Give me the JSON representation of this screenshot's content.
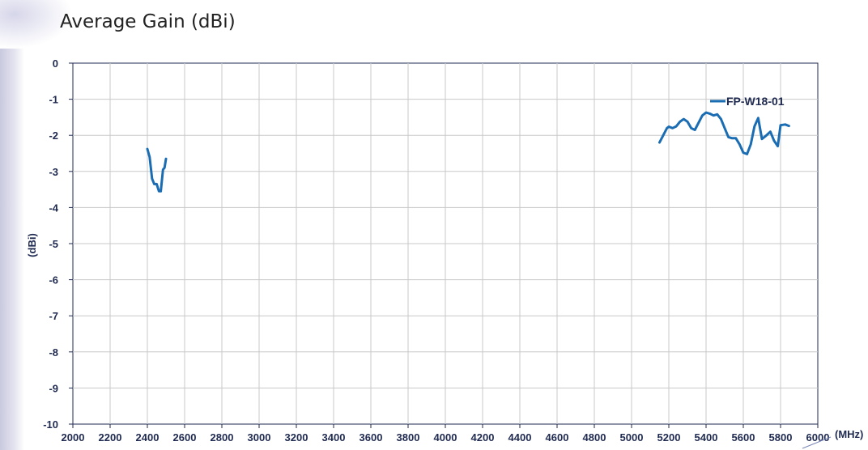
{
  "page_title": "Average Gain (dBi)",
  "chart_data": {
    "type": "line",
    "xlabel": "(MHz)",
    "ylabel": "(dBi)",
    "xlim": [
      2000,
      6000
    ],
    "ylim": [
      -10,
      0
    ],
    "xticks": [
      "2000",
      "2200",
      "2400",
      "2600",
      "2800",
      "3000",
      "3200",
      "3400",
      "3600",
      "3800",
      "4000",
      "4200",
      "4400",
      "4600",
      "4800",
      "5000",
      "5200",
      "5400",
      "5600",
      "5800",
      "6000"
    ],
    "yticks": [
      "0",
      "-1",
      "-2",
      "-3",
      "-4",
      "-5",
      "-6",
      "-7",
      "-8",
      "-9",
      "-10"
    ],
    "grid": true,
    "legend_position": "top-right",
    "colors": {
      "series": "#1a6db3",
      "grid": "#c8c8c8",
      "axis": "#1f2a50"
    },
    "series": [
      {
        "name": "FP-W18-01",
        "segments": [
          {
            "x": [
              2400,
              2412,
              2425,
              2437,
              2450,
              2462,
              2472,
              2484,
              2492,
              2500
            ],
            "y": [
              -2.38,
              -2.6,
              -3.2,
              -3.35,
              -3.35,
              -3.55,
              -3.55,
              -2.95,
              -2.9,
              -2.65
            ]
          },
          {
            "x": [
              5150,
              5170,
              5190,
              5200,
              5220,
              5240,
              5260,
              5280,
              5300,
              5320,
              5340,
              5360,
              5380,
              5400,
              5420,
              5440,
              5460,
              5480,
              5500,
              5520,
              5540,
              5560,
              5580,
              5600,
              5620,
              5640,
              5660,
              5680,
              5700,
              5720,
              5745,
              5765,
              5785,
              5800,
              5825,
              5845
            ],
            "y": [
              -2.2,
              -2.0,
              -1.8,
              -1.76,
              -1.8,
              -1.75,
              -1.62,
              -1.55,
              -1.62,
              -1.8,
              -1.85,
              -1.65,
              -1.45,
              -1.37,
              -1.4,
              -1.45,
              -1.42,
              -1.55,
              -1.8,
              -2.05,
              -2.08,
              -2.08,
              -2.25,
              -2.48,
              -2.52,
              -2.25,
              -1.75,
              -1.52,
              -2.1,
              -2.02,
              -1.9,
              -2.15,
              -2.3,
              -1.72,
              -1.7,
              -1.74
            ]
          }
        ]
      }
    ]
  }
}
